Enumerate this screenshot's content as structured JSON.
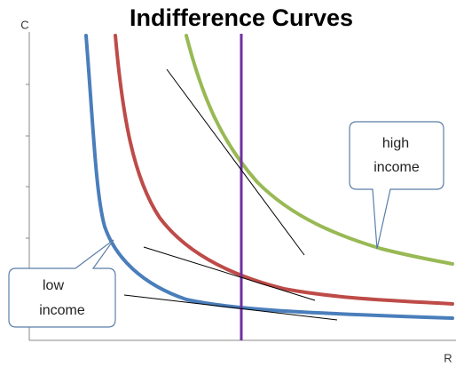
{
  "title": "Indifference Curves",
  "axes": {
    "y_label": "C",
    "x_label": "R"
  },
  "callouts": [
    {
      "lines": [
        "high",
        "income"
      ]
    },
    {
      "lines": [
        "low",
        "income"
      ]
    }
  ]
}
